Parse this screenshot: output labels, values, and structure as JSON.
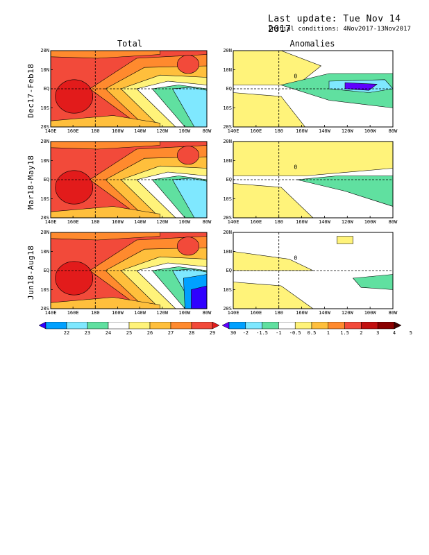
{
  "header": {
    "last_update": "Last update: Tue Nov 14 2017",
    "initial_conditions": "Initial conditions: 4Nov2017-13Nov2017"
  },
  "columns": {
    "total": "Total",
    "anomalies": "Anomalies"
  },
  "rows": [
    "Dec17-Feb18",
    "Mar18-May18",
    "Jun18-Aug18"
  ],
  "axes": {
    "lat_ticks": [
      "20N",
      "10N",
      "EQ",
      "10S",
      "20S"
    ],
    "lon_ticks": [
      "140E",
      "160E",
      "180",
      "160W",
      "140W",
      "120W",
      "100W",
      "80W"
    ]
  },
  "total_colorbar": {
    "labels": [
      "22",
      "23",
      "24",
      "25",
      "26",
      "27",
      "28",
      "29",
      "30"
    ],
    "colors": [
      "#2f00ff",
      "#00a0ff",
      "#7fe8ff",
      "#60e0a0",
      "#ffffff",
      "#fff37a",
      "#ffbf3c",
      "#ff8a2e",
      "#f24a3a",
      "#e21b1b"
    ]
  },
  "anomaly_colorbar": {
    "labels": [
      "-2",
      "-1.5",
      "-1",
      "-0.5",
      "0.5",
      "1",
      "1.5",
      "2",
      "3",
      "4",
      "5"
    ],
    "colors": [
      "#6000ff",
      "#00a0ff",
      "#7fe8ff",
      "#60e0a0",
      "#ffffff",
      "#fff37a",
      "#ffbf3c",
      "#ff8a2e",
      "#f24a3a",
      "#c21010",
      "#8a0000",
      "#400000"
    ]
  },
  "contour_label": "0"
}
